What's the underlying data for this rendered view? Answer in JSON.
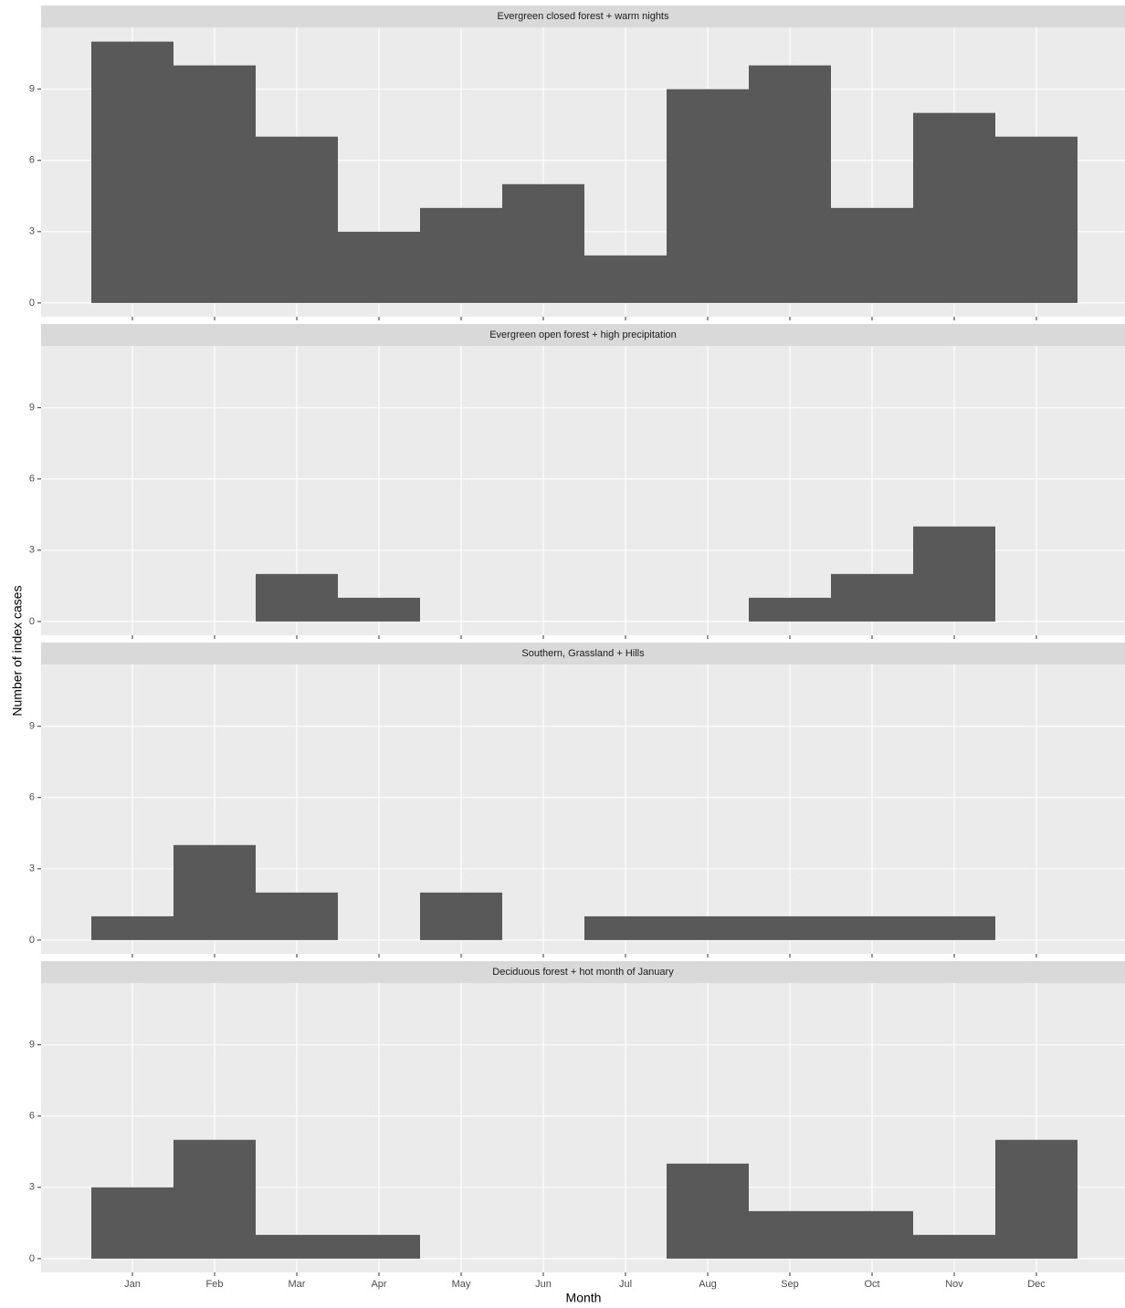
{
  "x_label": "Month",
  "y_label": "Number of index cases",
  "chart_data": [
    {
      "type": "bar",
      "title": "Evergreen closed forest + warm nights",
      "categories": [
        "Jan",
        "Feb",
        "Mar",
        "Apr",
        "May",
        "Jun",
        "Jul",
        "Aug",
        "Sep",
        "Oct",
        "Nov",
        "Dec"
      ],
      "values": [
        11,
        10,
        7,
        3,
        4,
        5,
        2,
        9,
        10,
        4,
        8,
        7
      ],
      "color": "#595959",
      "ylim": [
        -0.58,
        11.6
      ],
      "yticks": [
        0,
        3,
        6,
        9
      ],
      "grid": true
    },
    {
      "type": "bar",
      "title": "Evergreen open forest + high precipitation",
      "categories": [
        "Jan",
        "Feb",
        "Mar",
        "Apr",
        "May",
        "Jun",
        "Jul",
        "Aug",
        "Sep",
        "Oct",
        "Nov",
        "Dec"
      ],
      "values": [
        0,
        0,
        2,
        1,
        0,
        0,
        0,
        0,
        1,
        2,
        4,
        0
      ],
      "color": "#595959",
      "ylim": [
        -0.58,
        11.6
      ],
      "yticks": [
        0,
        3,
        6,
        9
      ],
      "grid": true
    },
    {
      "type": "bar",
      "title": "Southern, Grassland +  Hills",
      "categories": [
        "Jan",
        "Feb",
        "Mar",
        "Apr",
        "May",
        "Jun",
        "Jul",
        "Aug",
        "Sep",
        "Oct",
        "Nov",
        "Dec"
      ],
      "values": [
        1,
        4,
        2,
        0,
        2,
        0,
        1,
        1,
        1,
        1,
        1,
        0
      ],
      "color": "#595959",
      "ylim": [
        -0.58,
        11.6
      ],
      "yticks": [
        0,
        3,
        6,
        9
      ],
      "grid": true
    },
    {
      "type": "bar",
      "title": "Deciduous forest + hot month of January",
      "categories": [
        "Jan",
        "Feb",
        "Mar",
        "Apr",
        "May",
        "Jun",
        "Jul",
        "Aug",
        "Sep",
        "Oct",
        "Nov",
        "Dec"
      ],
      "values": [
        3,
        5,
        1,
        1,
        0,
        0,
        0,
        4,
        2,
        2,
        1,
        5
      ],
      "color": "#595959",
      "ylim": [
        -0.58,
        11.6
      ],
      "yticks": [
        0,
        3,
        6,
        9
      ],
      "grid": true
    }
  ]
}
